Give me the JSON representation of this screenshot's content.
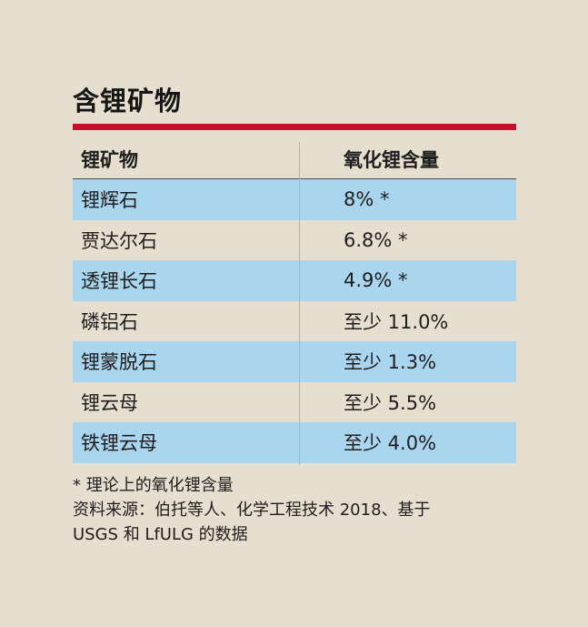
{
  "title": "含锂矿物",
  "table": {
    "headers": [
      "锂矿物",
      "氧化锂含量"
    ],
    "rows": [
      {
        "mineral": "锂辉石",
        "content": "8% *"
      },
      {
        "mineral": "贾达尔石",
        "content": "6.8% *"
      },
      {
        "mineral": "透锂长石",
        "content": "4.9% *"
      },
      {
        "mineral": "磷铝石",
        "content": "至少 11.0%"
      },
      {
        "mineral": "锂蒙脱石",
        "content": "至少 1.3%"
      },
      {
        "mineral": "锂云母",
        "content": "至少 5.5%"
      },
      {
        "mineral": "铁锂云母",
        "content": "至少 4.0%"
      }
    ]
  },
  "footnotes": {
    "note": "* 理论上的氧化锂含量",
    "source_line1": "资料来源：伯托等人、化学工程技术 2018、基于",
    "source_line2": "USGS 和 LfULG 的数据"
  },
  "colors": {
    "background": "#e6dece",
    "accent_rule": "#c8102e",
    "row_shade": "#a9d5ef"
  }
}
